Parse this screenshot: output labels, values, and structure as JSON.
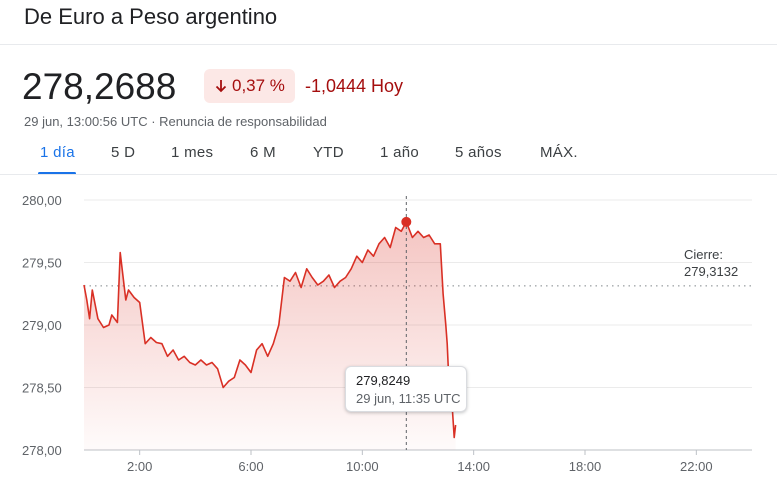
{
  "header": {
    "title": "De Euro a Peso argentino",
    "price": "278,2688",
    "change_pct": "0,37 %",
    "change_abs": "-1,0444 Hoy",
    "timestamp": "29 jun, 13:00:56 UTC · ",
    "disclaimer": "Renuncia de responsabilidad"
  },
  "tabs": [
    {
      "label": "1 día",
      "active": true
    },
    {
      "label": "5 D"
    },
    {
      "label": "1 mes"
    },
    {
      "label": "6 M"
    },
    {
      "label": "YTD"
    },
    {
      "label": "1 año"
    },
    {
      "label": "5 años"
    },
    {
      "label": "MÁX."
    }
  ],
  "colors": {
    "line": "#d93025",
    "accent": "#1a73e8",
    "negative": "#a50e0e"
  },
  "chart_data": {
    "type": "area",
    "ylim": [
      278.0,
      280.0
    ],
    "xlim": [
      0,
      24
    ],
    "y_ticks": [
      "280,00",
      "279,50",
      "279,00",
      "278,50",
      "278,00"
    ],
    "y_tick_values": [
      280.0,
      279.5,
      279.0,
      278.5,
      278.0
    ],
    "x_ticks": [
      "2:00",
      "6:00",
      "10:00",
      "14:00",
      "18:00",
      "22:00"
    ],
    "x_tick_values": [
      2,
      6,
      10,
      14,
      18,
      22
    ],
    "close": {
      "label": "Cierre:",
      "value": "279,3132",
      "y": 279.3132
    },
    "tooltip": {
      "value": "279,8249",
      "time": "29 jun, 11:35 UTC",
      "x": 11.58,
      "y": 279.8249
    },
    "series": [
      {
        "x": [
          0,
          0.1,
          0.2,
          0.3,
          0.5,
          0.7,
          0.9,
          1.0,
          1.2,
          1.3,
          1.5,
          1.6,
          1.8,
          2.0,
          2.2,
          2.4,
          2.6,
          2.8,
          3.0,
          3.2,
          3.4,
          3.6,
          3.8,
          4.0,
          4.2,
          4.4,
          4.6,
          4.8,
          5.0,
          5.2,
          5.4,
          5.6,
          5.8,
          6.0,
          6.2,
          6.4,
          6.6,
          6.8,
          7.0,
          7.2,
          7.4,
          7.6,
          7.8,
          8.0,
          8.2,
          8.4,
          8.6,
          8.8,
          9.0,
          9.2,
          9.4,
          9.6,
          9.8,
          10.0,
          10.2,
          10.4,
          10.6,
          10.8,
          11.0,
          11.2,
          11.4,
          11.58,
          11.8,
          12.0,
          12.2,
          12.4,
          12.6,
          12.8,
          12.9,
          13.0,
          13.05,
          13.1,
          13.2,
          13.3,
          13.35
        ],
        "y": [
          279.32,
          279.2,
          279.05,
          279.28,
          279.05,
          278.98,
          279.0,
          279.08,
          279.02,
          279.58,
          279.2,
          279.28,
          279.22,
          279.18,
          278.85,
          278.9,
          278.86,
          278.85,
          278.75,
          278.8,
          278.72,
          278.75,
          278.7,
          278.68,
          278.72,
          278.68,
          278.7,
          278.65,
          278.5,
          278.55,
          278.58,
          278.72,
          278.68,
          278.62,
          278.8,
          278.85,
          278.75,
          278.85,
          279.0,
          279.38,
          279.35,
          279.42,
          279.3,
          279.45,
          279.38,
          279.32,
          279.35,
          279.4,
          279.3,
          279.35,
          279.38,
          279.45,
          279.55,
          279.5,
          279.6,
          279.55,
          279.65,
          279.7,
          279.62,
          279.78,
          279.75,
          279.8249,
          279.7,
          279.75,
          279.7,
          279.72,
          279.65,
          279.65,
          279.25,
          279.0,
          278.85,
          278.6,
          278.45,
          278.1,
          278.2
        ]
      }
    ]
  }
}
